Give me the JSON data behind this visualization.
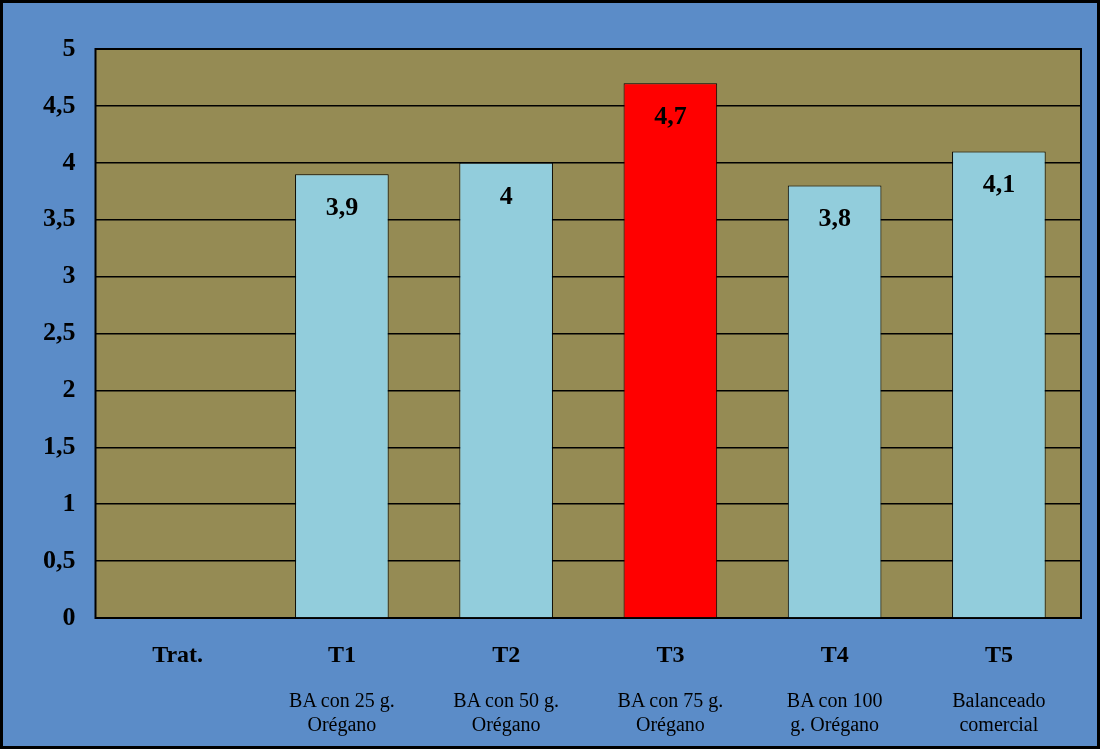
{
  "chart_data": {
    "type": "bar",
    "categories": [
      "Trat.\n",
      "T1\nBA con 25 g.\nOrégano",
      "T2\nBA con 50 g.\nOrégano",
      "T3\nBA con 75 g.\nOrégano",
      "T4\nBA con 100\ng. Orégano",
      "T5\nBalanceado\ncomercial"
    ],
    "values": [
      null,
      3.9,
      4,
      4.7,
      3.8,
      4.1
    ],
    "colors": [
      "#92cddc",
      "#92cddc",
      "#92cddc",
      "#ff0000",
      "#92cddc",
      "#92cddc"
    ],
    "value_labels": [
      null,
      "3,9",
      "4",
      "4,7",
      "3,8",
      "4,1"
    ],
    "ylim": [
      0,
      5
    ],
    "yticks": [
      0,
      {
        "value": 0.5,
        "label": "0,5"
      },
      1,
      {
        "value": 1.5,
        "label": "1,5"
      },
      2,
      {
        "value": 2.5,
        "label": "2,5"
      },
      3,
      {
        "value": 3.5,
        "label": "3,5"
      },
      4,
      {
        "value": 4.5,
        "label": "4,5"
      },
      5
    ],
    "grid": "y",
    "legend": false
  }
}
